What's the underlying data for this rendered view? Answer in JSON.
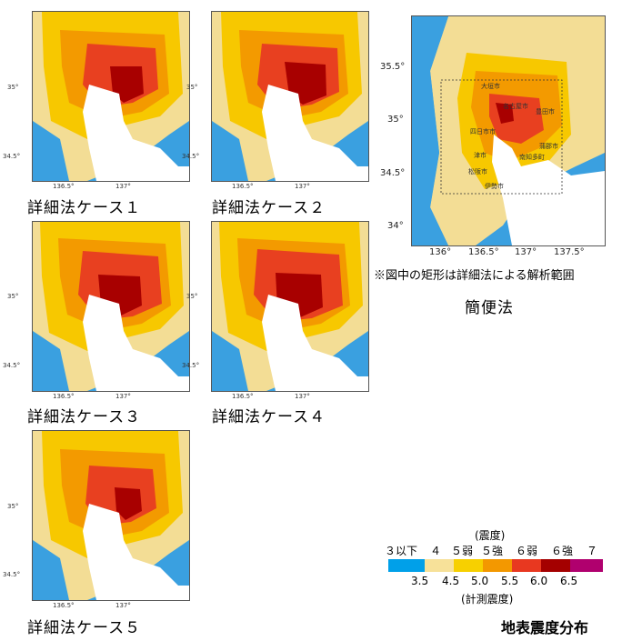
{
  "panels": [
    {
      "caption": "詳細法ケース１",
      "xticks": [
        "136.5°",
        "137°"
      ],
      "yticks": [
        "35°",
        "34.5°"
      ]
    },
    {
      "caption": "詳細法ケース２",
      "xticks": [
        "136.5°",
        "137°"
      ],
      "yticks": [
        "35°",
        "34.5°"
      ]
    },
    {
      "caption": "詳細法ケース３",
      "xticks": [
        "136.5°",
        "137°"
      ],
      "yticks": [
        "35°",
        "34.5°"
      ]
    },
    {
      "caption": "詳細法ケース４",
      "xticks": [
        "136.5°",
        "137°"
      ],
      "yticks": [
        "35°",
        "34.5°"
      ]
    },
    {
      "caption": "詳細法ケース５",
      "xticks": [
        "136.5°",
        "137°"
      ],
      "yticks": [
        "35°",
        "34.5°"
      ]
    }
  ],
  "simple_map": {
    "caption": "簡便法",
    "note": "※図中の矩形は詳細法による解析範囲",
    "xticks": [
      "136°",
      "136.5°",
      "137°",
      "137.5°"
    ],
    "yticks": [
      "35.5°",
      "35°",
      "34.5°",
      "34°"
    ],
    "place_labels": [
      "大垣市",
      "名古屋市",
      "豊田市",
      "四日市市",
      "蒲郡市",
      "津市",
      "南知多町",
      "松阪市",
      "伊勢市"
    ]
  },
  "legend": {
    "header": "(震度)",
    "intensity_labels": [
      "３以下",
      "４",
      "５弱",
      "５強",
      "６弱",
      "６強",
      "７"
    ],
    "measured_values": [
      "3.5",
      "4.5",
      "5.0",
      "5.5",
      "6.0",
      "6.5"
    ],
    "footer": "(計測震度)",
    "colors": [
      "#00a0e9",
      "#f7e199",
      "#f7d000",
      "#f39800",
      "#e83820",
      "#a40000",
      "#b0006e"
    ]
  },
  "title": "地表震度分布"
}
